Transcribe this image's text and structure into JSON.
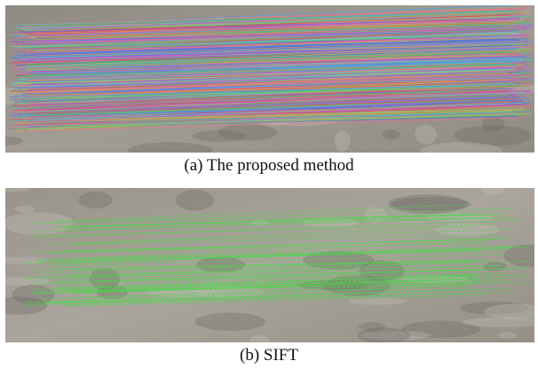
{
  "figure": {
    "panels": [
      {
        "caption": "(a) The proposed method"
      },
      {
        "caption": "(b) SIFT"
      }
    ]
  }
}
